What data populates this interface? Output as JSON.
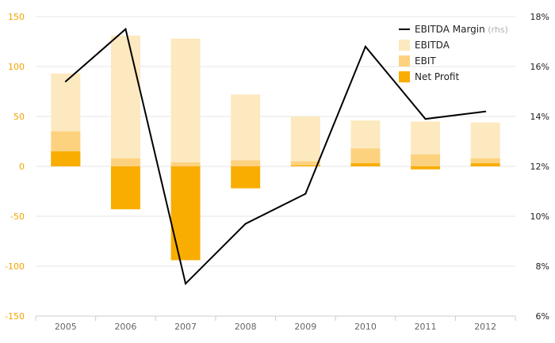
{
  "chart_data": {
    "type": "bar",
    "title": "",
    "xlabel": "",
    "ylabel": "",
    "categories": [
      "2005",
      "2006",
      "2007",
      "2008",
      "2009",
      "2010",
      "2011",
      "2012"
    ],
    "ylim": [
      -150,
      150
    ],
    "y_ticks": [
      "150",
      "100",
      "50",
      "0",
      "-50",
      "-100",
      "-150"
    ],
    "y2lim": [
      6,
      18
    ],
    "y2_ticks": [
      "18%",
      "16%",
      "14%",
      "12%",
      "10%",
      "8%",
      "6%"
    ],
    "grid": true,
    "legend_position": "top-right",
    "series": [
      {
        "name": "EBITDA",
        "kind": "bar",
        "color": "#fde9bf",
        "values": [
          93,
          131,
          128,
          72,
          50,
          46,
          45,
          44
        ]
      },
      {
        "name": "EBIT",
        "kind": "bar",
        "color": "#fdd27f",
        "values": [
          35,
          8,
          4,
          6,
          5,
          18,
          12,
          8
        ]
      },
      {
        "name": "Net Profit",
        "kind": "bar",
        "color": "#f9ad00",
        "values": [
          15,
          -43,
          -94,
          -22,
          1,
          3,
          -3,
          3
        ]
      },
      {
        "name": "EBITDA Margin",
        "name_suffix": "(rhs)",
        "kind": "line",
        "axis": "right",
        "color": "#000000",
        "values": [
          15.4,
          17.5,
          7.3,
          9.7,
          10.9,
          16.8,
          13.9,
          14.2
        ]
      }
    ]
  }
}
